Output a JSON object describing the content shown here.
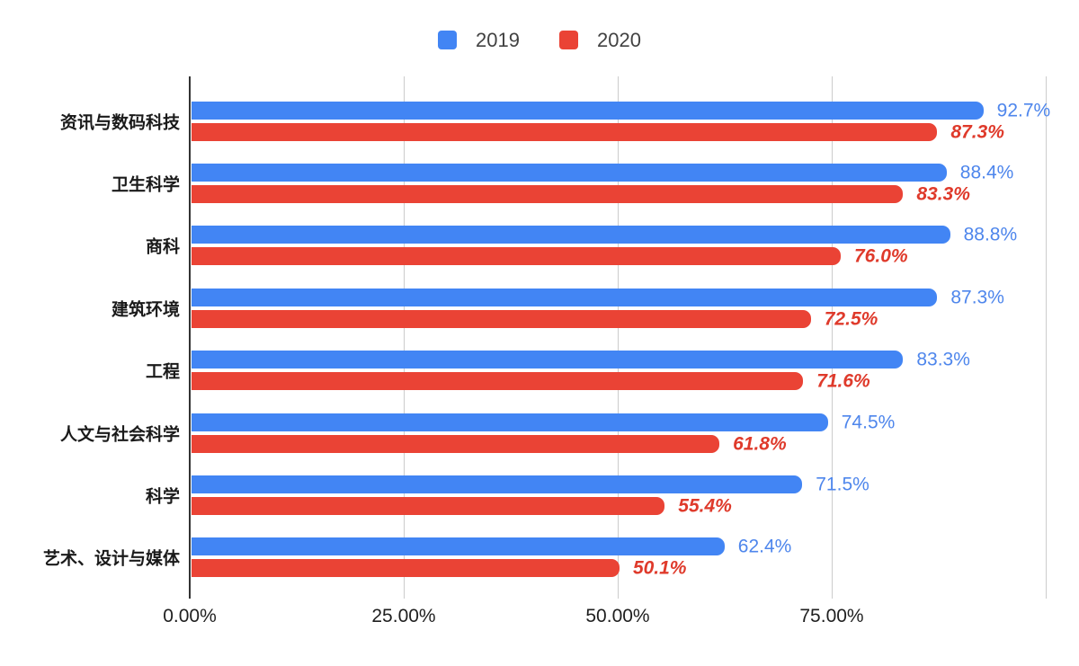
{
  "legend": {
    "items": [
      "2019",
      "2020"
    ]
  },
  "chart_data": {
    "type": "bar",
    "orientation": "horizontal",
    "title": "",
    "xlabel": "",
    "ylabel": "",
    "categories": [
      "资讯与数码科技",
      "卫生科学",
      "商科",
      "建筑环境",
      "工程",
      "人文与社会科学",
      "科学",
      "艺术、设计与媒体"
    ],
    "series": [
      {
        "name": "2019",
        "color": "#4285F4",
        "label_color": "#4e86ec",
        "label_style": "normal",
        "values": [
          92.7,
          88.4,
          88.8,
          87.3,
          83.3,
          74.5,
          71.5,
          62.4
        ],
        "labels": [
          "92.7%",
          "88.4%",
          "88.8%",
          "87.3%",
          "83.3%",
          "74.5%",
          "71.5%",
          "62.4%"
        ]
      },
      {
        "name": "2020",
        "color": "#EA4335",
        "label_color": "#df3a2b",
        "label_style": "bold-italic",
        "values": [
          87.3,
          83.3,
          76.0,
          72.5,
          71.6,
          61.8,
          55.4,
          50.1
        ],
        "labels": [
          "87.3%",
          "83.3%",
          "76.0%",
          "72.5%",
          "71.6%",
          "61.8%",
          "55.4%",
          "50.1%"
        ]
      }
    ],
    "x_axis": {
      "tick_labels": [
        "0.00%",
        "25.00%",
        "50.00%",
        "75.00%"
      ],
      "tick_values": [
        0,
        25,
        50,
        75
      ],
      "range": [
        0,
        100
      ],
      "gridline_values": [
        25,
        50,
        75,
        100
      ],
      "grid": true
    },
    "legend_position": "top"
  },
  "colors": {
    "background": "#ffffff",
    "grid": "#cccccc",
    "axis": "#333333",
    "legend_text": "#424242",
    "tick_text": "#1f1f1f",
    "category_text": "#1a1a1a"
  }
}
